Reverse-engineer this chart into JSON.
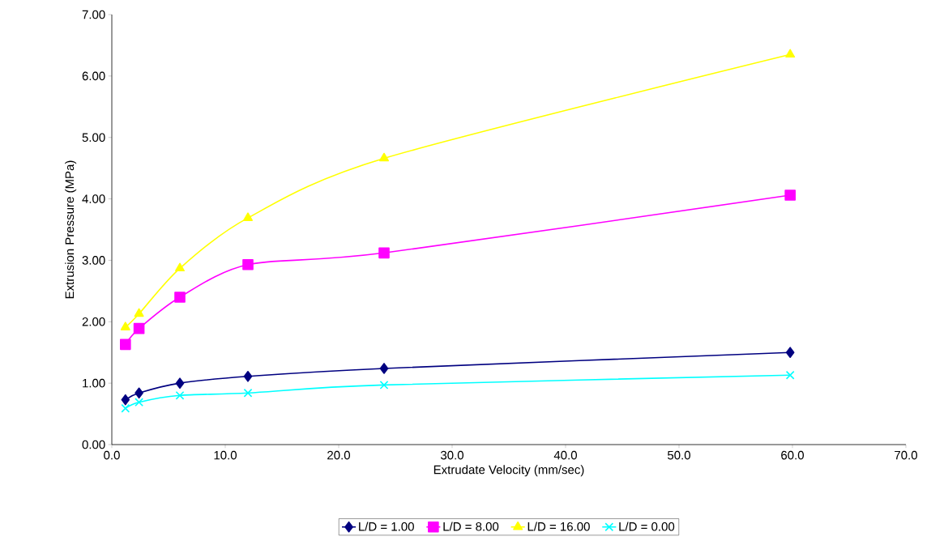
{
  "chart_data": {
    "type": "line",
    "xlabel": "Extrudate Velocity (mm/sec)",
    "ylabel": "Extrusion Pressure (MPa)",
    "xlim": [
      0,
      70
    ],
    "xticks": [
      {
        "value": 0,
        "label": "0.0"
      },
      {
        "value": 10,
        "label": "10.0"
      },
      {
        "value": 20,
        "label": "20.0"
      },
      {
        "value": 30,
        "label": "30.0"
      },
      {
        "value": 40,
        "label": "40.0"
      },
      {
        "value": 50,
        "label": "50.0"
      },
      {
        "value": 60,
        "label": "60.0"
      },
      {
        "value": 70,
        "label": "70.0"
      }
    ],
    "ylim": [
      0,
      7
    ],
    "yticks": [
      {
        "value": 0,
        "label": "0.00"
      },
      {
        "value": 1,
        "label": "1.00"
      },
      {
        "value": 2,
        "label": "2.00"
      },
      {
        "value": 3,
        "label": "3.00"
      },
      {
        "value": 4,
        "label": "4.00"
      },
      {
        "value": 5,
        "label": "5.00"
      },
      {
        "value": 6,
        "label": "6.00"
      },
      {
        "value": 7,
        "label": "7.00"
      }
    ],
    "x": [
      1.2,
      2.4,
      6.0,
      12.0,
      24.0,
      59.8
    ],
    "grid": false,
    "legend": "bottom",
    "line_style": "solid",
    "series": [
      {
        "name": "L/D = 1.00",
        "color": "#000080",
        "marker": "diamond",
        "values": [
          0.73,
          0.84,
          1.0,
          1.11,
          1.24,
          1.5
        ]
      },
      {
        "name": "L/D = 8.00",
        "color": "#ff00ff",
        "marker": "square",
        "values": [
          1.63,
          1.89,
          2.4,
          2.93,
          3.12,
          4.06
        ]
      },
      {
        "name": "L/D = 16.00",
        "color": "#ffff00",
        "marker": "triangle",
        "values": [
          1.91,
          2.13,
          2.87,
          3.69,
          4.66,
          6.35
        ]
      },
      {
        "name": "L/D = 0.00",
        "color": "#00ffff",
        "marker": "cross",
        "values": [
          0.59,
          0.69,
          0.8,
          0.84,
          0.97,
          1.13
        ]
      }
    ]
  }
}
